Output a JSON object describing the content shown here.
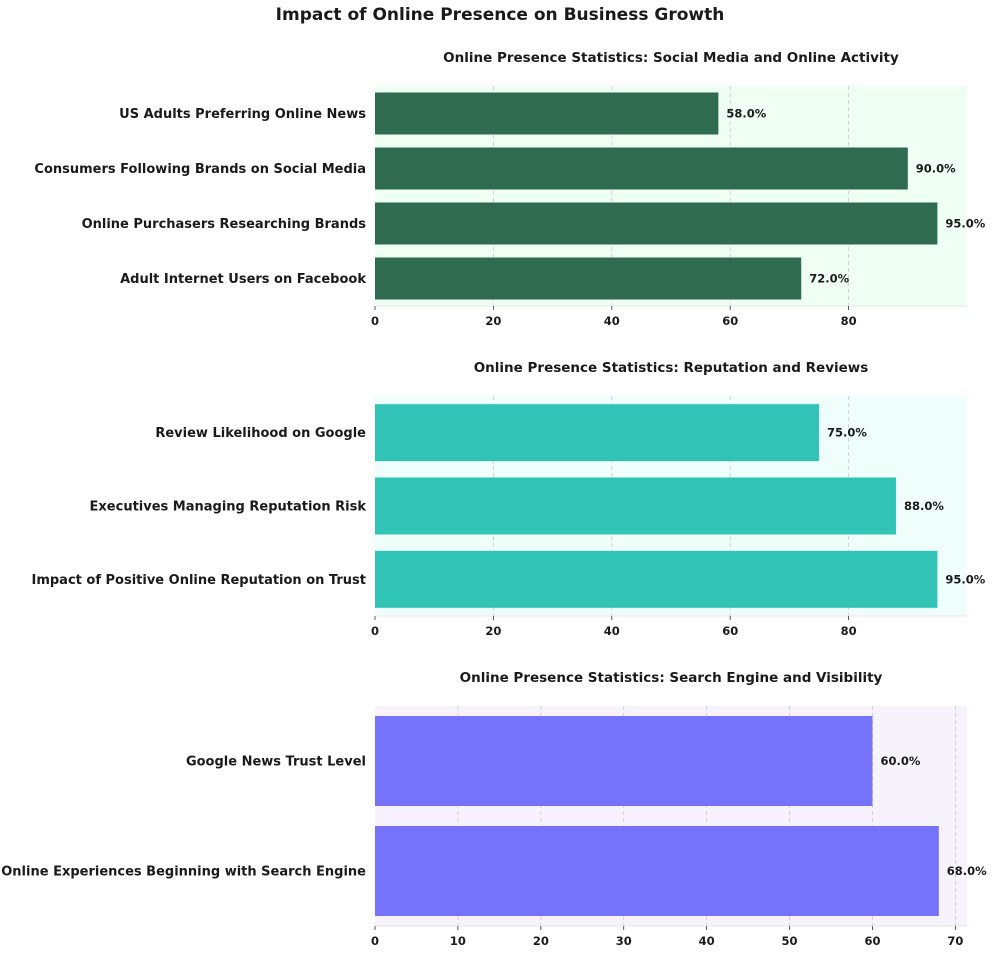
{
  "figure": {
    "title": "Impact of Online Presence on Business Growth"
  },
  "chart_data": [
    {
      "type": "bar",
      "orientation": "horizontal",
      "title": "Online Presence Statistics: Social Media and Online Activity",
      "categories": [
        "US Adults Preferring Online News",
        "Consumers Following Brands on Social Media",
        "Online Purchasers Researching Brands",
        "Adult Internet Users on Facebook"
      ],
      "values": [
        58.0,
        90.0,
        95.0,
        72.0
      ],
      "value_labels": [
        "58.0%",
        "90.0%",
        "95.0%",
        "72.0%"
      ],
      "xticks": [
        0,
        20,
        40,
        60,
        80
      ],
      "xlim": [
        0,
        100
      ],
      "grid": "x-dashed",
      "bar_color": "#2e6b50",
      "background": "#f0fff3"
    },
    {
      "type": "bar",
      "orientation": "horizontal",
      "title": "Online Presence Statistics: Reputation and Reviews",
      "categories": [
        "Review Likelihood on Google",
        "Executives Managing Reputation Risk",
        "Impact of Positive Online Reputation on Trust"
      ],
      "values": [
        75.0,
        88.0,
        95.0
      ],
      "value_labels": [
        "75.0%",
        "88.0%",
        "95.0%"
      ],
      "xticks": [
        0,
        20,
        40,
        60,
        80
      ],
      "xlim": [
        0,
        100
      ],
      "grid": "x-dashed",
      "bar_color": "#31c4b6",
      "background": "#effefb"
    },
    {
      "type": "bar",
      "orientation": "horizontal",
      "title": "Online Presence Statistics: Search Engine and Visibility",
      "categories": [
        "Google News Trust Level",
        "Online Experiences Beginning with Search Engine"
      ],
      "values": [
        60.0,
        68.0
      ],
      "value_labels": [
        "60.0%",
        "68.0%"
      ],
      "xticks": [
        0,
        10,
        20,
        30,
        40,
        50,
        60,
        70
      ],
      "xlim": [
        0,
        71.4
      ],
      "grid": "x-dashed",
      "bar_color": "#7572fb",
      "background": "#f6f3fc"
    }
  ]
}
